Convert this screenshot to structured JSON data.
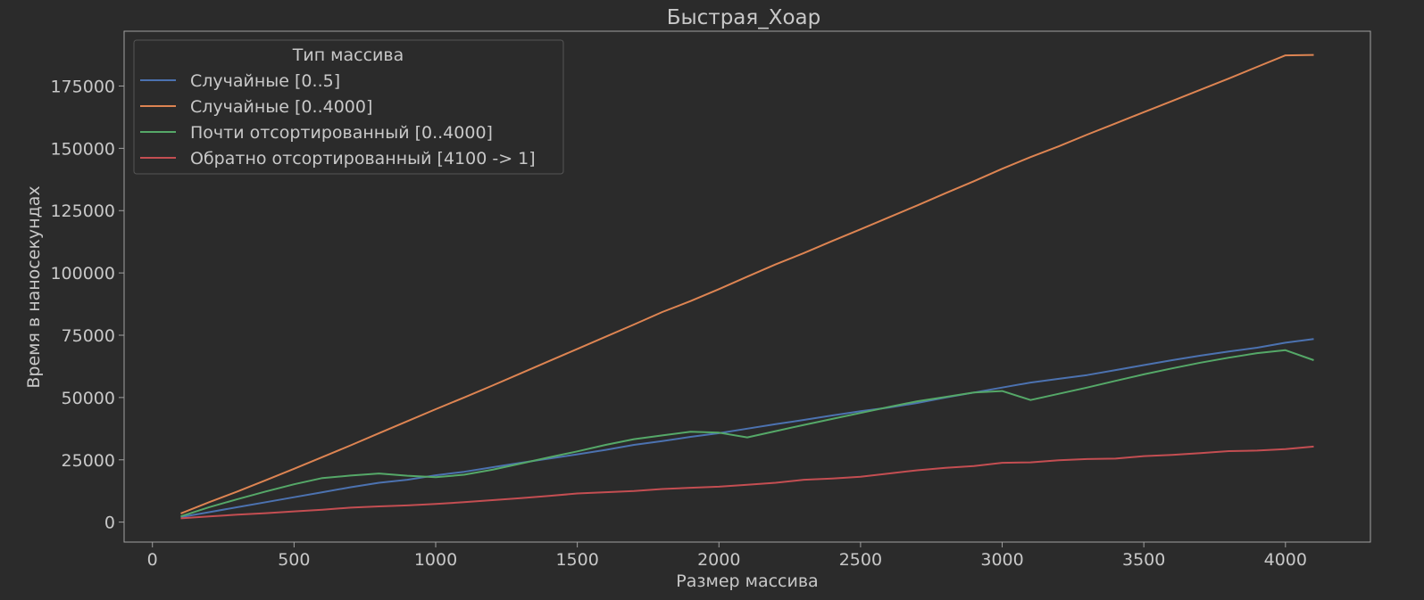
{
  "chart_data": {
    "type": "line",
    "title": "Быстрая_Хоар",
    "xlabel": "Размер массива",
    "ylabel": "Время в наносекундах",
    "xlim": [
      -100,
      4300
    ],
    "ylim": [
      -8000,
      197000
    ],
    "xticks": [
      0,
      500,
      1000,
      1500,
      2000,
      2500,
      3000,
      3500,
      4000
    ],
    "yticks": [
      0,
      25000,
      50000,
      75000,
      100000,
      125000,
      150000,
      175000
    ],
    "grid": false,
    "legend": {
      "title": "Тип массива",
      "placement": "top-left"
    },
    "x": [
      100,
      200,
      300,
      400,
      500,
      600,
      700,
      800,
      900,
      1000,
      1100,
      1200,
      1300,
      1400,
      1500,
      1600,
      1700,
      1800,
      1900,
      2000,
      2100,
      2200,
      2300,
      2400,
      2500,
      2600,
      2700,
      2800,
      2900,
      3000,
      3100,
      3200,
      3300,
      3400,
      3500,
      3600,
      3700,
      3800,
      3900,
      4000,
      4100
    ],
    "series": [
      {
        "name": "Случайные [0..5]",
        "color": "#4c72b0",
        "values": [
          2000,
          4000,
          6000,
          8000,
          10000,
          12000,
          14000,
          15800,
          17000,
          18800,
          20200,
          22000,
          23800,
          25500,
          27200,
          29000,
          31000,
          32500,
          34200,
          35700,
          37500,
          39300,
          41000,
          42800,
          44500,
          46000,
          47800,
          50000,
          52000,
          54000,
          56000,
          57500,
          59000,
          61000,
          63000,
          65000,
          66800,
          68500,
          70000,
          72000,
          73500
        ]
      },
      {
        "name": "Случайные [0..4000]",
        "color": "#dd8452",
        "values": [
          3500,
          8000,
          12300,
          16800,
          21400,
          26100,
          30800,
          35700,
          40500,
          45300,
          50000,
          54800,
          59700,
          64600,
          69500,
          74400,
          79300,
          84300,
          88700,
          93500,
          98500,
          103400,
          108000,
          112800,
          117500,
          122300,
          127100,
          132000,
          136800,
          141800,
          146500,
          150800,
          155500,
          160000,
          164500,
          169000,
          173500,
          178000,
          182700,
          187300,
          187500
        ]
      },
      {
        "name": "Почти отсортированный [0..4000]",
        "color": "#55a868",
        "values": [
          2300,
          6000,
          9200,
          12300,
          15200,
          17700,
          18700,
          19500,
          18600,
          18000,
          19000,
          21000,
          23500,
          26000,
          28400,
          31000,
          33300,
          34800,
          36300,
          35900,
          34000,
          36500,
          39000,
          41400,
          43800,
          46200,
          48500,
          50200,
          52000,
          52600,
          49000,
          51500,
          54000,
          56700,
          59300,
          61700,
          64000,
          66000,
          67800,
          69000,
          65000
        ]
      },
      {
        "name": "Обратно отсортированный [4100 -> 1]",
        "color": "#c44e52",
        "values": [
          1500,
          2300,
          3000,
          3600,
          4300,
          5000,
          5800,
          6300,
          6700,
          7300,
          8000,
          8800,
          9600,
          10500,
          11500,
          12000,
          12500,
          13300,
          13800,
          14200,
          15000,
          15800,
          17000,
          17500,
          18200,
          19500,
          20800,
          21800,
          22500,
          23800,
          24000,
          24800,
          25300,
          25500,
          26500,
          27000,
          27700,
          28500,
          28700,
          29300,
          30300
        ]
      }
    ]
  }
}
